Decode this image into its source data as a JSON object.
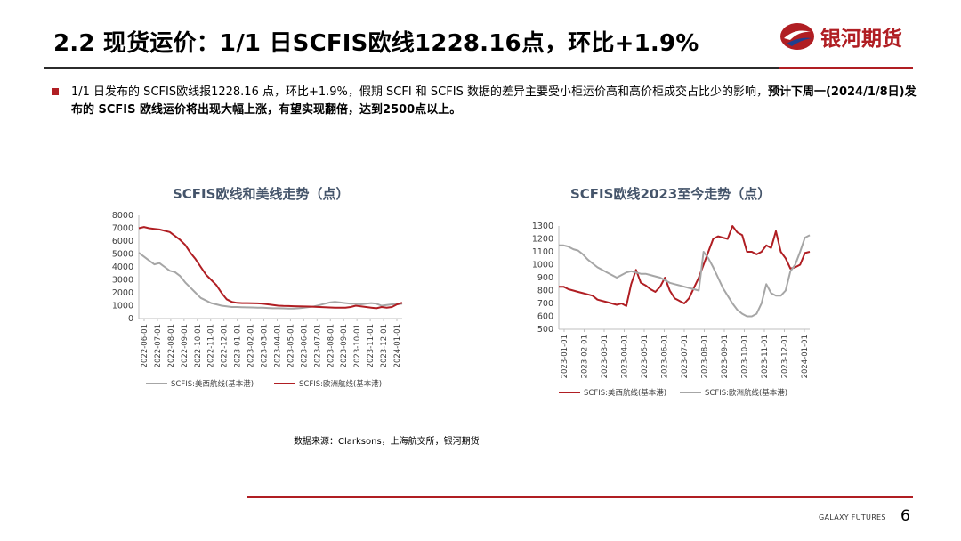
{
  "header": {
    "title": "2.2 现货运价：1/1 日SCFIS欧线1228.16点，环比+1.9%",
    "logo_text": "银河期货"
  },
  "bullet": {
    "normal": "1/1 日发布的 SCFIS欧线报1228.16 点，环比+1.9%，假期 SCFI 和 SCFIS 数据的差异主要受小柜运价高和高价柜成交占比少的影响，",
    "bold": "预计下周一(2024/1/8日)发布的 SCFIS 欧线运价将出现大幅上涨，有望实现翻倍，达到2500点以上。"
  },
  "colors": {
    "red": "#b01e23",
    "gray": "#a6a6a6",
    "title": "#44546a"
  },
  "chart_data": [
    {
      "type": "line",
      "title": "SCFIS欧线和美线走势（点）",
      "ylim": [
        0,
        8000
      ],
      "yticks": [
        "0",
        "1000",
        "2000",
        "3000",
        "4000",
        "5000",
        "6000",
        "7000",
        "8000"
      ],
      "x_labels": [
        "2022-06-01",
        "2022-07-01",
        "2022-08-01",
        "2022-09-01",
        "2022-10-01",
        "2022-11-01",
        "2022-12-01",
        "2023-01-01",
        "2023-02-01",
        "2023-03-01",
        "2023-04-01",
        "2023-05-01",
        "2023-06-01",
        "2023-07-01",
        "2023-08-01",
        "2023-09-01",
        "2023-10-01",
        "2023-11-01",
        "2023-12-01",
        "2024-01-01"
      ],
      "legend_placement": "bottom",
      "series": [
        {
          "name": "SCFIS:美西航线(基本港)",
          "color": "#a6a6a6",
          "values": [
            5100,
            4800,
            4500,
            4200,
            4300,
            4000,
            3700,
            3600,
            3300,
            2800,
            2400,
            2000,
            1600,
            1400,
            1200,
            1100,
            1000,
            950,
            900,
            900,
            880,
            870,
            860,
            850,
            840,
            820,
            800,
            800,
            790,
            780,
            780,
            800,
            850,
            900,
            950,
            1050,
            1150,
            1250,
            1300,
            1250,
            1200,
            1150,
            1150,
            1100,
            1150,
            1200,
            1150,
            1000,
            1050,
            1100,
            1100,
            1150
          ]
        },
        {
          "name": "SCFIS:欧洲航线(基本港)",
          "color": "#b01e23",
          "values": [
            7000,
            7100,
            7000,
            6950,
            6900,
            6800,
            6700,
            6400,
            6100,
            5700,
            5100,
            4600,
            4000,
            3400,
            3000,
            2600,
            2000,
            1500,
            1300,
            1220,
            1200,
            1200,
            1190,
            1180,
            1150,
            1100,
            1050,
            1000,
            980,
            970,
            960,
            950,
            940,
            930,
            920,
            900,
            880,
            860,
            850,
            840,
            850,
            900,
            1000,
            950,
            900,
            850,
            800,
            900,
            850,
            900,
            1100,
            1228
          ]
        }
      ]
    },
    {
      "type": "line",
      "title": "SCFIS欧线2023至今走势（点）",
      "ylim": [
        500,
        1300
      ],
      "yticks": [
        "500",
        "600",
        "700",
        "800",
        "900",
        "1000",
        "1100",
        "1200",
        "1300"
      ],
      "x_labels": [
        "2023-01-01",
        "2023-02-01",
        "2023-03-01",
        "2023-04-01",
        "2023-05-01",
        "2023-06-01",
        "2023-07-01",
        "2023-08-01",
        "2023-09-01",
        "2023-10-01",
        "2023-11-01",
        "2023-12-01",
        "2024-01-01"
      ],
      "legend_placement": "bottom",
      "series": [
        {
          "name": "SCFIS:美西航线(基本港)",
          "color": "#b01e23",
          "values": [
            830,
            830,
            810,
            800,
            790,
            780,
            770,
            760,
            730,
            720,
            710,
            700,
            690,
            700,
            680,
            850,
            960,
            860,
            840,
            810,
            790,
            830,
            900,
            800,
            740,
            720,
            700,
            740,
            820,
            900,
            1000,
            1100,
            1200,
            1220,
            1210,
            1200,
            1300,
            1250,
            1230,
            1100,
            1100,
            1080,
            1100,
            1150,
            1130,
            1260,
            1100,
            1050,
            970,
            980,
            1000,
            1090,
            1100
          ]
        },
        {
          "name": "SCFIS:欧洲航线(基本港)",
          "color": "#a6a6a6",
          "values": [
            1150,
            1150,
            1140,
            1120,
            1110,
            1080,
            1040,
            1010,
            980,
            960,
            940,
            920,
            900,
            920,
            940,
            950,
            940,
            930,
            930,
            920,
            910,
            900,
            880,
            860,
            850,
            840,
            830,
            820,
            810,
            800,
            1100,
            1050,
            980,
            900,
            820,
            760,
            700,
            650,
            620,
            600,
            600,
            620,
            700,
            850,
            780,
            760,
            760,
            800,
            950,
            1000,
            1100,
            1210,
            1228
          ]
        }
      ]
    }
  ],
  "source_note": "数据来源：Clarksons，上海航交所，银河期货",
  "footer": {
    "brand": "GALAXY FUTURES",
    "page": "6"
  }
}
